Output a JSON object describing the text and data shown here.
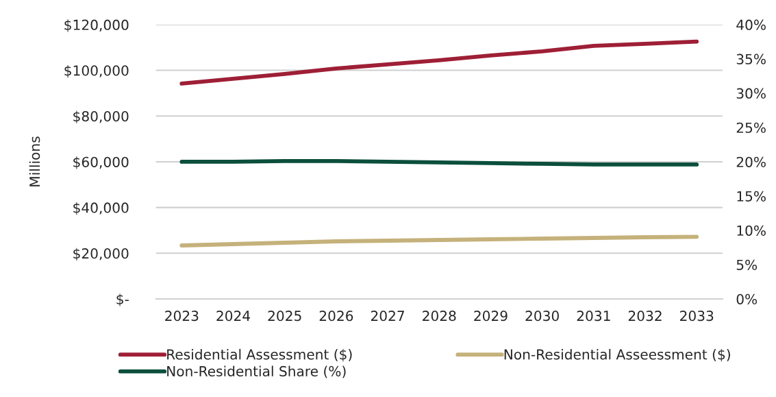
{
  "chart_data": {
    "type": "line",
    "ylabel": "Millions",
    "categories": [
      "2023",
      "2024",
      "2025",
      "2026",
      "2027",
      "2028",
      "2029",
      "2030",
      "2031",
      "2032",
      "2033"
    ],
    "series": [
      {
        "name": "Residential Assessment ($)",
        "color": "#9e1f36",
        "values": [
          94200,
          96300,
          98400,
          100800,
          102600,
          104400,
          106500,
          108300,
          110700,
          111600,
          112600
        ]
      },
      {
        "name": "Non-Residential Asseessment ($)",
        "color": "#c5b17b",
        "values": [
          23400,
          24000,
          24600,
          25200,
          25500,
          25800,
          26100,
          26400,
          26700,
          27000,
          27200
        ]
      },
      {
        "name": "Non-Residential Share (%)",
        "color": "#0b4f3c",
        "axis": "y2",
        "values": [
          20.0,
          20.0,
          20.1,
          20.1,
          20.0,
          19.9,
          19.8,
          19.7,
          19.6,
          19.6,
          19.6
        ]
      }
    ],
    "ylim": [
      0,
      120000
    ],
    "yticks": [
      {
        "value": 0,
        "label": "$-"
      },
      {
        "value": 20000,
        "label": "$20,000"
      },
      {
        "value": 40000,
        "label": "$40,000"
      },
      {
        "value": 60000,
        "label": "$60,000"
      },
      {
        "value": 80000,
        "label": "$80,000"
      },
      {
        "value": 100000,
        "label": "$100,000"
      },
      {
        "value": 120000,
        "label": "$120,000"
      }
    ],
    "y2lim": [
      0,
      40
    ],
    "y2ticks": [
      {
        "value": 0,
        "label": "0%"
      },
      {
        "value": 5,
        "label": "5%"
      },
      {
        "value": 10,
        "label": "10%"
      },
      {
        "value": 15,
        "label": "15%"
      },
      {
        "value": 20,
        "label": "20%"
      },
      {
        "value": 25,
        "label": "25%"
      },
      {
        "value": 30,
        "label": "30%"
      },
      {
        "value": 35,
        "label": "35%"
      },
      {
        "value": 40,
        "label": "40%"
      }
    ],
    "grid": "y",
    "legend": "bottom",
    "marker": "none",
    "line_style": "solid"
  }
}
